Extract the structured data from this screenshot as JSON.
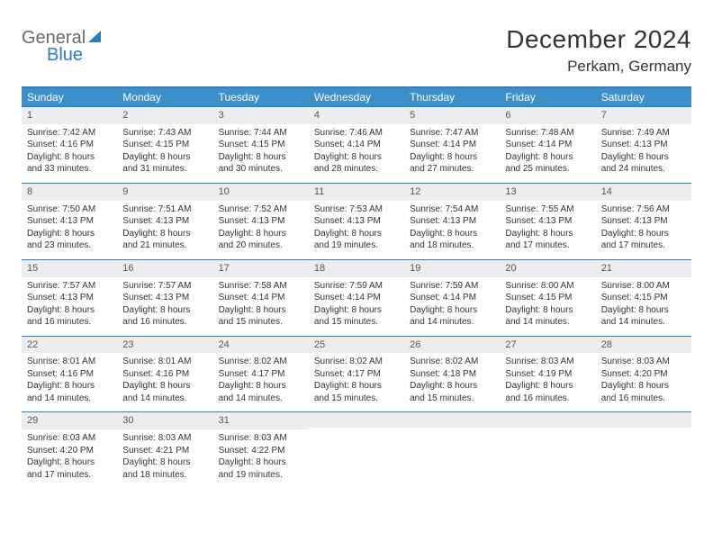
{
  "logo": {
    "word1": "General",
    "word2": "Blue"
  },
  "title": "December 2024",
  "location": "Perkam, Germany",
  "colors": {
    "header_bg": "#3d8fc9",
    "rule": "#2a7dc0",
    "daynum_bg": "#ecedef",
    "text": "#333333",
    "logo_gray": "#6a6a6a",
    "logo_blue": "#2a7dc0"
  },
  "dow": [
    "Sunday",
    "Monday",
    "Tuesday",
    "Wednesday",
    "Thursday",
    "Friday",
    "Saturday"
  ],
  "weeks": [
    [
      {
        "n": "1",
        "sr": "Sunrise: 7:42 AM",
        "ss": "Sunset: 4:16 PM",
        "dl": "Daylight: 8 hours and 33 minutes."
      },
      {
        "n": "2",
        "sr": "Sunrise: 7:43 AM",
        "ss": "Sunset: 4:15 PM",
        "dl": "Daylight: 8 hours and 31 minutes."
      },
      {
        "n": "3",
        "sr": "Sunrise: 7:44 AM",
        "ss": "Sunset: 4:15 PM",
        "dl": "Daylight: 8 hours and 30 minutes."
      },
      {
        "n": "4",
        "sr": "Sunrise: 7:46 AM",
        "ss": "Sunset: 4:14 PM",
        "dl": "Daylight: 8 hours and 28 minutes."
      },
      {
        "n": "5",
        "sr": "Sunrise: 7:47 AM",
        "ss": "Sunset: 4:14 PM",
        "dl": "Daylight: 8 hours and 27 minutes."
      },
      {
        "n": "6",
        "sr": "Sunrise: 7:48 AM",
        "ss": "Sunset: 4:14 PM",
        "dl": "Daylight: 8 hours and 25 minutes."
      },
      {
        "n": "7",
        "sr": "Sunrise: 7:49 AM",
        "ss": "Sunset: 4:13 PM",
        "dl": "Daylight: 8 hours and 24 minutes."
      }
    ],
    [
      {
        "n": "8",
        "sr": "Sunrise: 7:50 AM",
        "ss": "Sunset: 4:13 PM",
        "dl": "Daylight: 8 hours and 23 minutes."
      },
      {
        "n": "9",
        "sr": "Sunrise: 7:51 AM",
        "ss": "Sunset: 4:13 PM",
        "dl": "Daylight: 8 hours and 21 minutes."
      },
      {
        "n": "10",
        "sr": "Sunrise: 7:52 AM",
        "ss": "Sunset: 4:13 PM",
        "dl": "Daylight: 8 hours and 20 minutes."
      },
      {
        "n": "11",
        "sr": "Sunrise: 7:53 AM",
        "ss": "Sunset: 4:13 PM",
        "dl": "Daylight: 8 hours and 19 minutes."
      },
      {
        "n": "12",
        "sr": "Sunrise: 7:54 AM",
        "ss": "Sunset: 4:13 PM",
        "dl": "Daylight: 8 hours and 18 minutes."
      },
      {
        "n": "13",
        "sr": "Sunrise: 7:55 AM",
        "ss": "Sunset: 4:13 PM",
        "dl": "Daylight: 8 hours and 17 minutes."
      },
      {
        "n": "14",
        "sr": "Sunrise: 7:56 AM",
        "ss": "Sunset: 4:13 PM",
        "dl": "Daylight: 8 hours and 17 minutes."
      }
    ],
    [
      {
        "n": "15",
        "sr": "Sunrise: 7:57 AM",
        "ss": "Sunset: 4:13 PM",
        "dl": "Daylight: 8 hours and 16 minutes."
      },
      {
        "n": "16",
        "sr": "Sunrise: 7:57 AM",
        "ss": "Sunset: 4:13 PM",
        "dl": "Daylight: 8 hours and 16 minutes."
      },
      {
        "n": "17",
        "sr": "Sunrise: 7:58 AM",
        "ss": "Sunset: 4:14 PM",
        "dl": "Daylight: 8 hours and 15 minutes."
      },
      {
        "n": "18",
        "sr": "Sunrise: 7:59 AM",
        "ss": "Sunset: 4:14 PM",
        "dl": "Daylight: 8 hours and 15 minutes."
      },
      {
        "n": "19",
        "sr": "Sunrise: 7:59 AM",
        "ss": "Sunset: 4:14 PM",
        "dl": "Daylight: 8 hours and 14 minutes."
      },
      {
        "n": "20",
        "sr": "Sunrise: 8:00 AM",
        "ss": "Sunset: 4:15 PM",
        "dl": "Daylight: 8 hours and 14 minutes."
      },
      {
        "n": "21",
        "sr": "Sunrise: 8:00 AM",
        "ss": "Sunset: 4:15 PM",
        "dl": "Daylight: 8 hours and 14 minutes."
      }
    ],
    [
      {
        "n": "22",
        "sr": "Sunrise: 8:01 AM",
        "ss": "Sunset: 4:16 PM",
        "dl": "Daylight: 8 hours and 14 minutes."
      },
      {
        "n": "23",
        "sr": "Sunrise: 8:01 AM",
        "ss": "Sunset: 4:16 PM",
        "dl": "Daylight: 8 hours and 14 minutes."
      },
      {
        "n": "24",
        "sr": "Sunrise: 8:02 AM",
        "ss": "Sunset: 4:17 PM",
        "dl": "Daylight: 8 hours and 14 minutes."
      },
      {
        "n": "25",
        "sr": "Sunrise: 8:02 AM",
        "ss": "Sunset: 4:17 PM",
        "dl": "Daylight: 8 hours and 15 minutes."
      },
      {
        "n": "26",
        "sr": "Sunrise: 8:02 AM",
        "ss": "Sunset: 4:18 PM",
        "dl": "Daylight: 8 hours and 15 minutes."
      },
      {
        "n": "27",
        "sr": "Sunrise: 8:03 AM",
        "ss": "Sunset: 4:19 PM",
        "dl": "Daylight: 8 hours and 16 minutes."
      },
      {
        "n": "28",
        "sr": "Sunrise: 8:03 AM",
        "ss": "Sunset: 4:20 PM",
        "dl": "Daylight: 8 hours and 16 minutes."
      }
    ],
    [
      {
        "n": "29",
        "sr": "Sunrise: 8:03 AM",
        "ss": "Sunset: 4:20 PM",
        "dl": "Daylight: 8 hours and 17 minutes."
      },
      {
        "n": "30",
        "sr": "Sunrise: 8:03 AM",
        "ss": "Sunset: 4:21 PM",
        "dl": "Daylight: 8 hours and 18 minutes."
      },
      {
        "n": "31",
        "sr": "Sunrise: 8:03 AM",
        "ss": "Sunset: 4:22 PM",
        "dl": "Daylight: 8 hours and 19 minutes."
      },
      null,
      null,
      null,
      null
    ]
  ]
}
